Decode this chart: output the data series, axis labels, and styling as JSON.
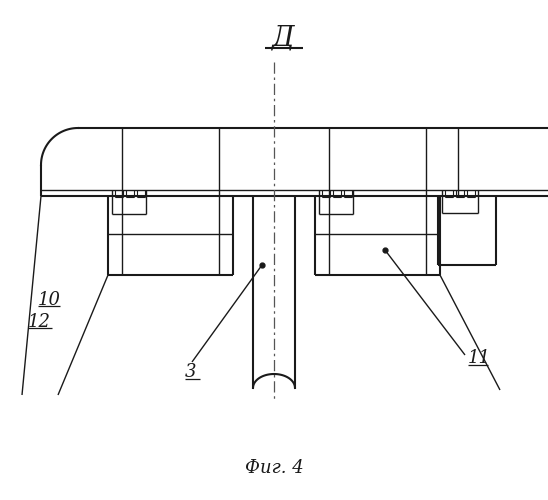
{
  "background_color": "#ffffff",
  "line_color": "#1a1a1a",
  "title_label": "Фиг. 4",
  "view_label": "Д",
  "label_10": "10",
  "label_11": "11",
  "label_12": "12",
  "label_3": "3",
  "figsize": [
    5.48,
    5.0
  ],
  "dpi": 100
}
